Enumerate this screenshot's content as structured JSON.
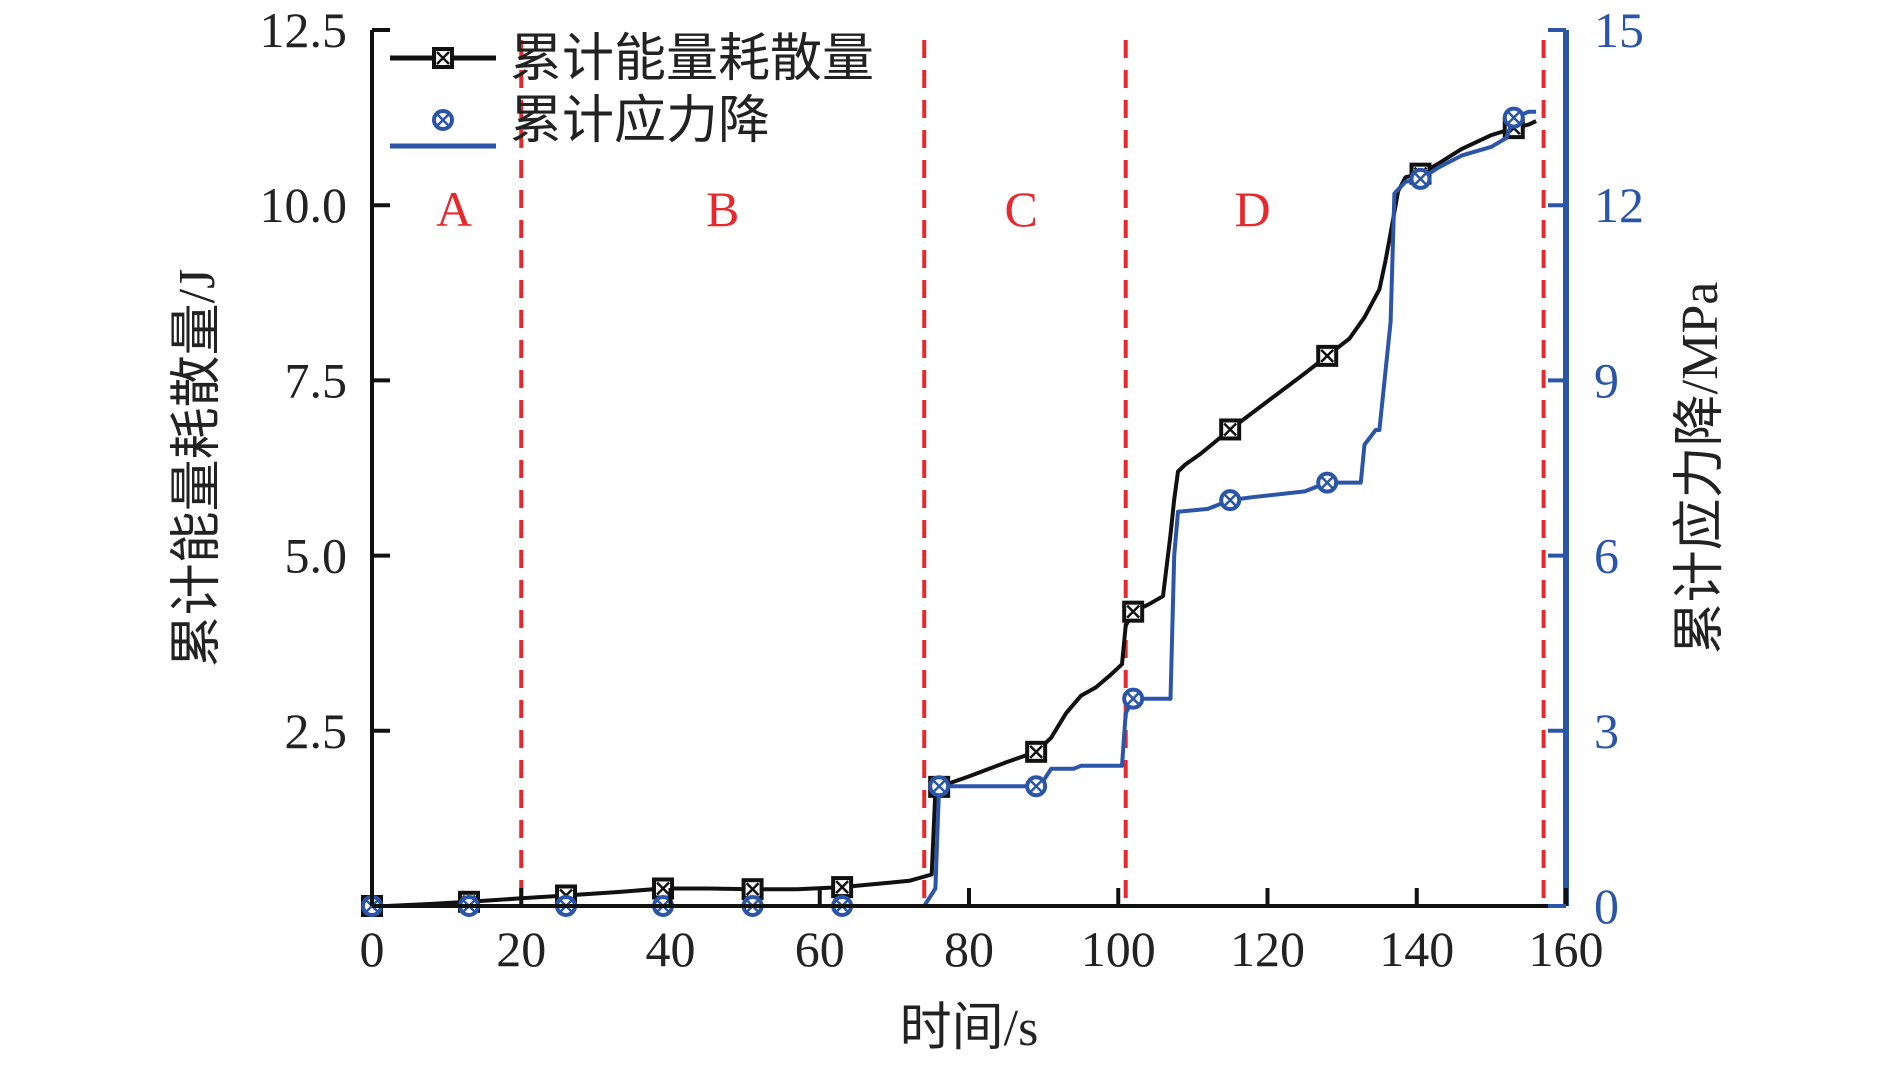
{
  "chart_data": {
    "type": "line",
    "xlabel": "时间/s",
    "ylabel_left": "累计能量耗散量/J",
    "ylabel_right": "累计应力降/MPa",
    "xlim": [
      0,
      160
    ],
    "ylim_left": [
      0,
      12.5
    ],
    "ylim_right": [
      0,
      15
    ],
    "x_ticks": [
      "0",
      "20",
      "40",
      "60",
      "80",
      "100",
      "120",
      "140",
      "160"
    ],
    "y_ticks_left": [
      "2.5",
      "5.0",
      "7.5",
      "10.0",
      "12.5"
    ],
    "y_ticks_right": [
      "0",
      "3",
      "6",
      "9",
      "12",
      "15"
    ],
    "legend_position": "top-left",
    "phase_boundaries": [
      20,
      74,
      101,
      157
    ],
    "phase_labels": [
      {
        "label": "A",
        "x": 11,
        "y": 9.7
      },
      {
        "label": "B",
        "x": 47,
        "y": 9.7
      },
      {
        "label": "C",
        "x": 87,
        "y": 9.7
      },
      {
        "label": "D",
        "x": 118,
        "y": 9.7
      }
    ],
    "series": [
      {
        "name": "累计能量耗散量",
        "axis": "left",
        "color": "#111111",
        "marker": "square-x",
        "x": [
          0,
          2,
          8,
          13,
          20,
          26,
          33,
          39,
          45,
          51,
          57,
          63,
          68,
          72,
          75,
          75.5,
          76,
          80,
          85,
          89,
          91,
          93,
          95,
          97,
          99,
          100.5,
          101,
          102,
          104,
          106,
          107,
          107.5,
          108,
          109,
          111,
          115,
          120,
          125,
          128,
          131,
          133,
          135,
          135.8,
          136.5,
          137.5,
          138.5,
          140.5,
          143,
          146,
          150,
          153,
          155,
          156
        ],
        "y": [
          0,
          0,
          0.03,
          0.06,
          0.11,
          0.15,
          0.2,
          0.25,
          0.25,
          0.24,
          0.24,
          0.27,
          0.32,
          0.36,
          0.45,
          1.65,
          1.7,
          1.85,
          2.05,
          2.2,
          2.4,
          2.75,
          3.0,
          3.12,
          3.3,
          3.45,
          4.0,
          4.2,
          4.3,
          4.42,
          5.3,
          5.8,
          6.2,
          6.3,
          6.45,
          6.8,
          7.2,
          7.6,
          7.85,
          8.1,
          8.4,
          8.8,
          9.2,
          9.6,
          10.2,
          10.4,
          10.45,
          10.6,
          10.8,
          11.0,
          11.1,
          11.15,
          11.2
        ]
      },
      {
        "name": "累计应力降",
        "axis": "right",
        "color": "#2a55a8",
        "marker": "circle-x",
        "x": [
          0,
          74,
          75.5,
          76,
          89,
          90,
          91,
          94,
          95,
          99,
          100.5,
          101,
          102,
          104,
          106,
          107,
          107.5,
          108,
          112,
          115,
          118,
          125,
          128,
          131,
          132.5,
          133,
          134.5,
          135,
          136.5,
          137,
          138.5,
          140.5,
          143,
          146,
          150,
          152,
          153,
          155,
          156
        ],
        "y": [
          0,
          0,
          0.3,
          2.05,
          2.05,
          2.15,
          2.35,
          2.35,
          2.4,
          2.4,
          2.4,
          3.3,
          3.55,
          3.55,
          3.55,
          3.55,
          6.0,
          6.75,
          6.8,
          6.95,
          7.0,
          7.1,
          7.25,
          7.25,
          7.25,
          7.9,
          8.15,
          8.15,
          10.0,
          12.2,
          12.4,
          12.45,
          12.65,
          12.85,
          13.0,
          13.15,
          13.5,
          13.6,
          13.6
        ]
      }
    ],
    "markers": {
      "energy_x": [
        0,
        13,
        26,
        39,
        51,
        63,
        76,
        89,
        102,
        115,
        128,
        140.5,
        153
      ],
      "stress_x": [
        0,
        13,
        26,
        39,
        51,
        63,
        76,
        89,
        102,
        115,
        128,
        140.5,
        153
      ]
    }
  }
}
